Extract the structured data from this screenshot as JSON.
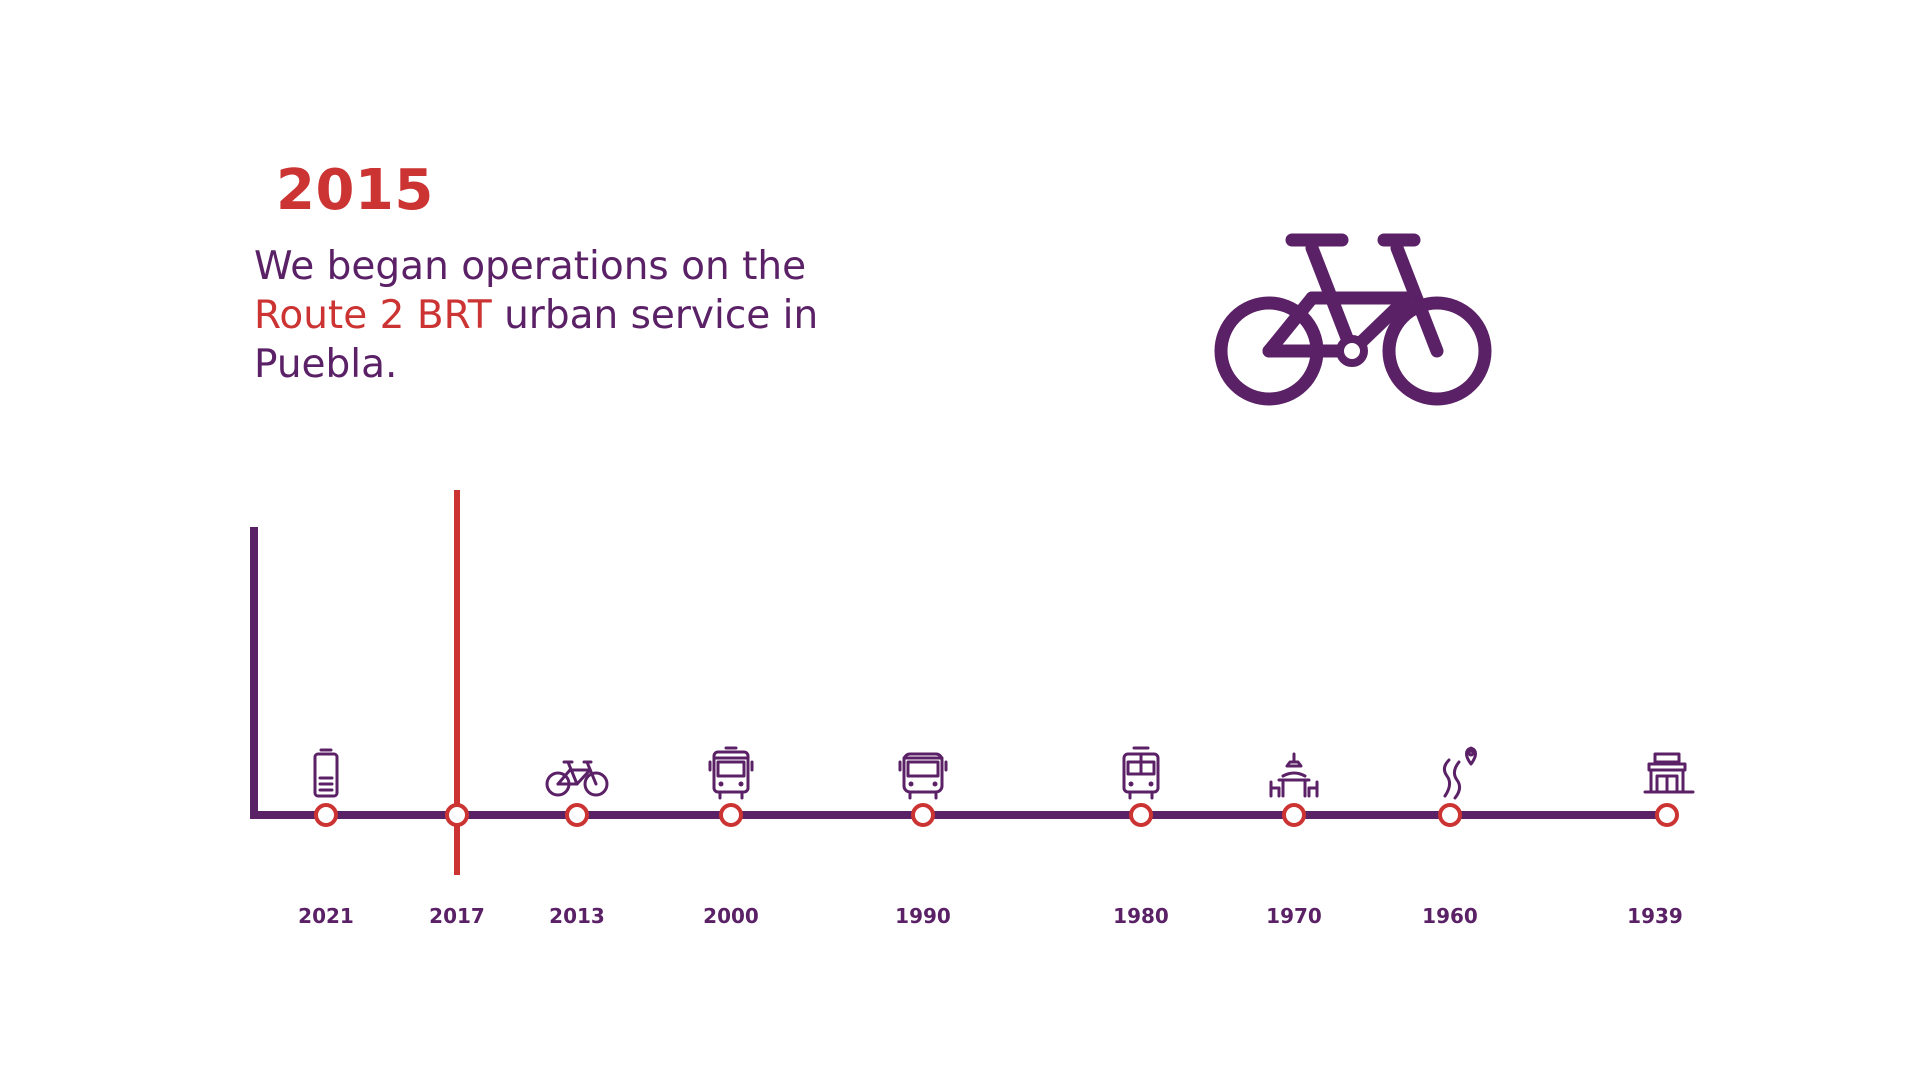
{
  "header": {
    "year": "2015",
    "text_before": "We began operations on the",
    "highlight": "Route 2 BRT",
    "text_after": "urban service in Puebla."
  },
  "timeline": {
    "years": [
      "2021",
      "2017",
      "2013",
      "2000",
      "1990",
      "1980",
      "1970",
      "1960",
      "1939"
    ],
    "selected": "2017",
    "icons": [
      "battery-icon",
      "selected-marker",
      "bicycle-icon",
      "bus-front-icon",
      "coach-icon",
      "trolleybus-icon",
      "market-stall-icon",
      "route-pin-icon",
      "building-icon"
    ]
  },
  "colors": {
    "purple": "#5b2166",
    "red": "#cc3333"
  }
}
